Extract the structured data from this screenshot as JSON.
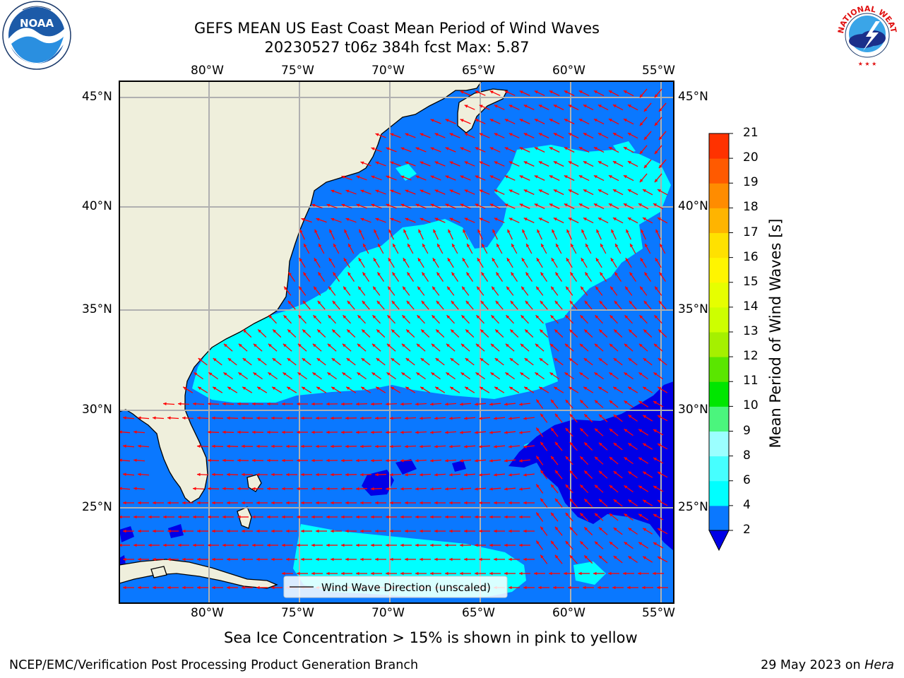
{
  "title": {
    "line1": "GEFS MEAN US East Coast Mean Period of Wind Waves",
    "line2": "20230527 t06z 384h fcst   Max: 5.87"
  },
  "logos": {
    "left": {
      "text": "NOAA",
      "icon": "noaa-logo"
    },
    "right": {
      "text": "NATIONAL WEATHER SERVICE",
      "icon": "nws-logo"
    }
  },
  "map": {
    "lon_ticks": [
      "80°W",
      "75°W",
      "70°W",
      "65°W",
      "60°W",
      "55°W"
    ],
    "lat_ticks": [
      "45°N",
      "40°N",
      "35°N",
      "30°N",
      "25°N"
    ],
    "legend_label": "Wind Wave Direction (unscaled)",
    "colors": {
      "land": "#efefdc",
      "dark_blue": "#0000e6",
      "blue": "#0a78ff",
      "cyan": "#00ffff",
      "arrow": "#ff0000",
      "grid": "#b0b0b0"
    }
  },
  "colorbar": {
    "label": "Mean Period of Wind Waves [s]",
    "levels": [
      "2",
      "4",
      "6",
      "8",
      "9",
      "10",
      "11",
      "12",
      "13",
      "14",
      "15",
      "16",
      "17",
      "18",
      "19",
      "20",
      "21"
    ],
    "colors": [
      "#0a78ff",
      "#00ffff",
      "#46ffff",
      "#9bffff",
      "#4bf57d",
      "#00e600",
      "#5ae600",
      "#a5f000",
      "#cdff00",
      "#e6ff00",
      "#fff500",
      "#ffe100",
      "#ffb400",
      "#ff8c00",
      "#ff5a00",
      "#ff3200",
      "#ff0000"
    ],
    "under_color": "#0000e6"
  },
  "caption": "Sea Ice Concentration > 15% is shown in pink to yellow",
  "footer": {
    "left": "NCEP/EMC/Verification Post Processing Product Generation Branch",
    "right_date": "29 May 2023 on ",
    "right_host": "Hera"
  }
}
